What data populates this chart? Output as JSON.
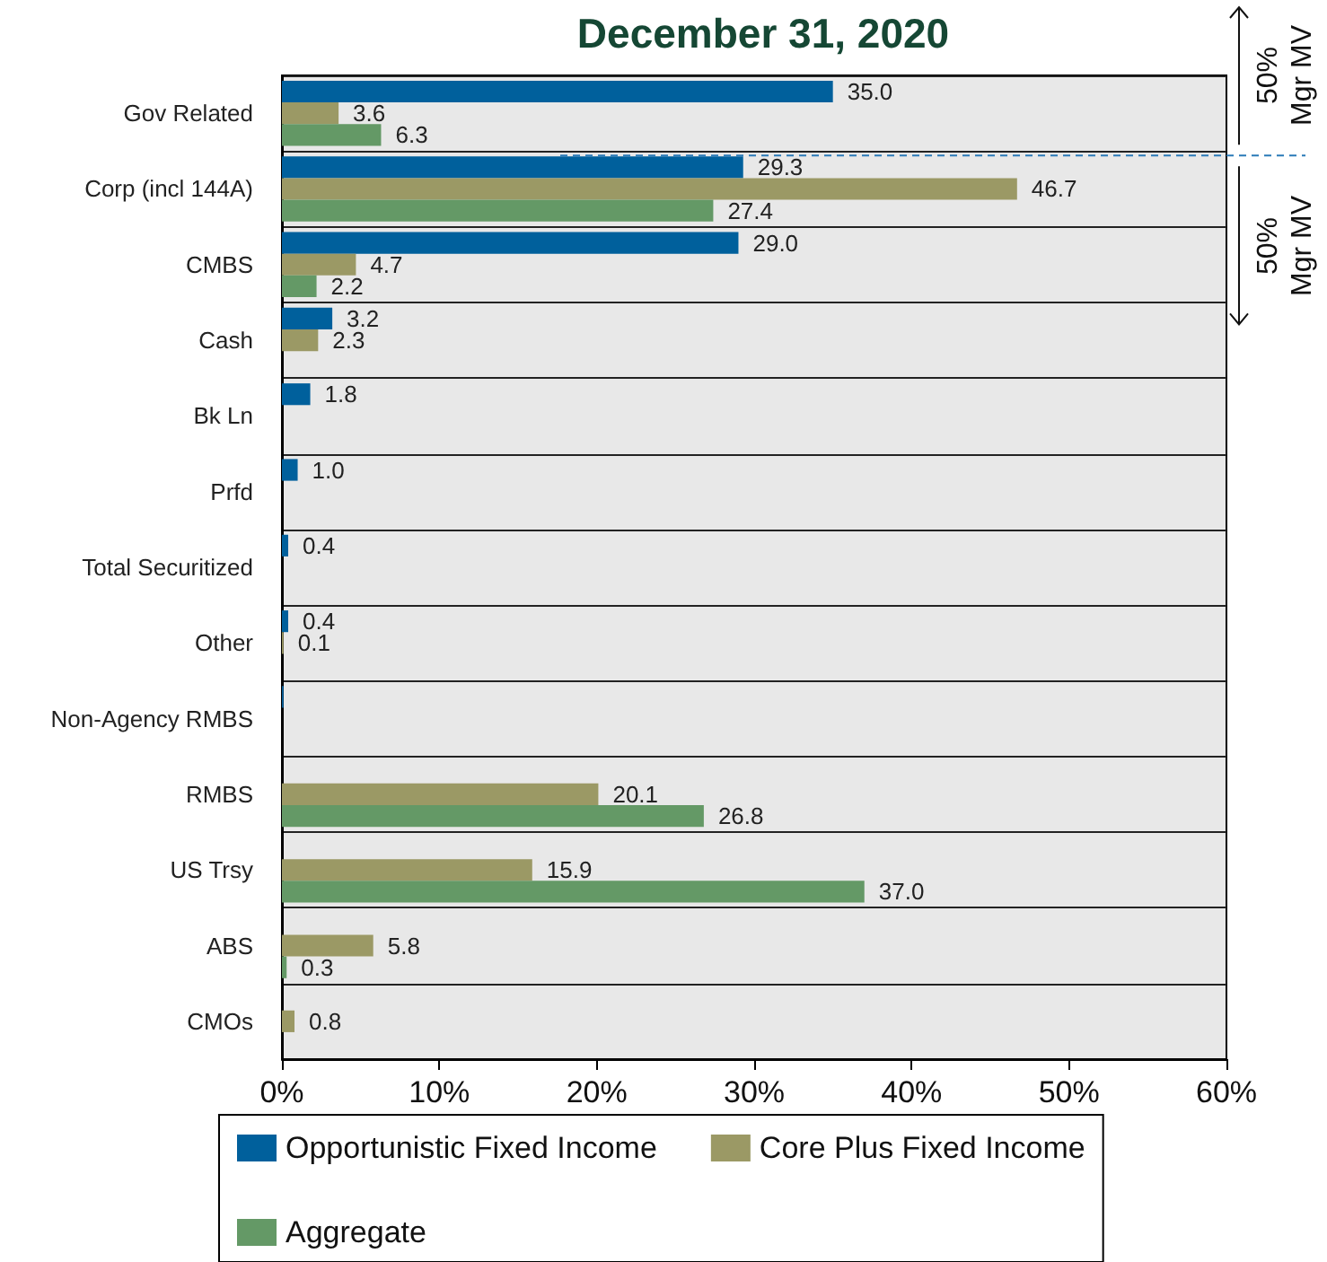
{
  "chart_data": {
    "type": "bar",
    "orientation": "horizontal",
    "title": "December 31, 2020",
    "categories": [
      "Gov Related",
      "Corp (incl 144A)",
      "CMBS",
      "Cash",
      "Bk Ln",
      "Prfd",
      "Total Securitized",
      "Other",
      "Non-Agency RMBS",
      "RMBS",
      "US Trsy",
      "ABS",
      "CMOs"
    ],
    "series": [
      {
        "name": "Opportunistic Fixed Income",
        "color": "#00609c",
        "values": [
          35.0,
          29.3,
          29.0,
          3.2,
          1.8,
          1.0,
          0.4,
          0.4,
          0.1,
          null,
          null,
          null,
          null
        ],
        "value_labels": [
          "35.0",
          "29.3",
          "29.0",
          "3.2",
          "1.8",
          "1.0",
          "0.4",
          "0.4",
          null,
          null,
          null,
          null,
          null
        ]
      },
      {
        "name": "Core Plus Fixed Income",
        "color": "#9b9965",
        "values": [
          3.6,
          46.7,
          4.7,
          2.3,
          null,
          null,
          null,
          0.1,
          null,
          20.1,
          15.9,
          5.8,
          0.8
        ],
        "value_labels": [
          "3.6",
          "46.7",
          "4.7",
          "2.3",
          null,
          null,
          null,
          "0.1",
          null,
          "20.1",
          "15.9",
          "5.8",
          "0.8"
        ]
      },
      {
        "name": "Aggregate",
        "color": "#649966",
        "values": [
          6.3,
          27.4,
          2.2,
          null,
          null,
          null,
          null,
          null,
          null,
          26.8,
          37.0,
          0.3,
          null
        ],
        "value_labels": [
          "6.3",
          "27.4",
          "2.2",
          null,
          null,
          null,
          null,
          null,
          null,
          "26.8",
          "37.0",
          "0.3",
          null
        ]
      }
    ],
    "xlim": [
      0,
      60
    ],
    "xticks": [
      {
        "value": 0,
        "label": "0%"
      },
      {
        "value": 10,
        "label": "10%"
      },
      {
        "value": 20,
        "label": "20%"
      },
      {
        "value": 30,
        "label": "30%"
      },
      {
        "value": 40,
        "label": "40%"
      },
      {
        "value": 50,
        "label": "50%"
      },
      {
        "value": 60,
        "label": "60%"
      }
    ],
    "grid": "y",
    "legend": "bottom",
    "annotations": [
      "50% Mgr MV",
      "50% Mgr MV"
    ]
  }
}
